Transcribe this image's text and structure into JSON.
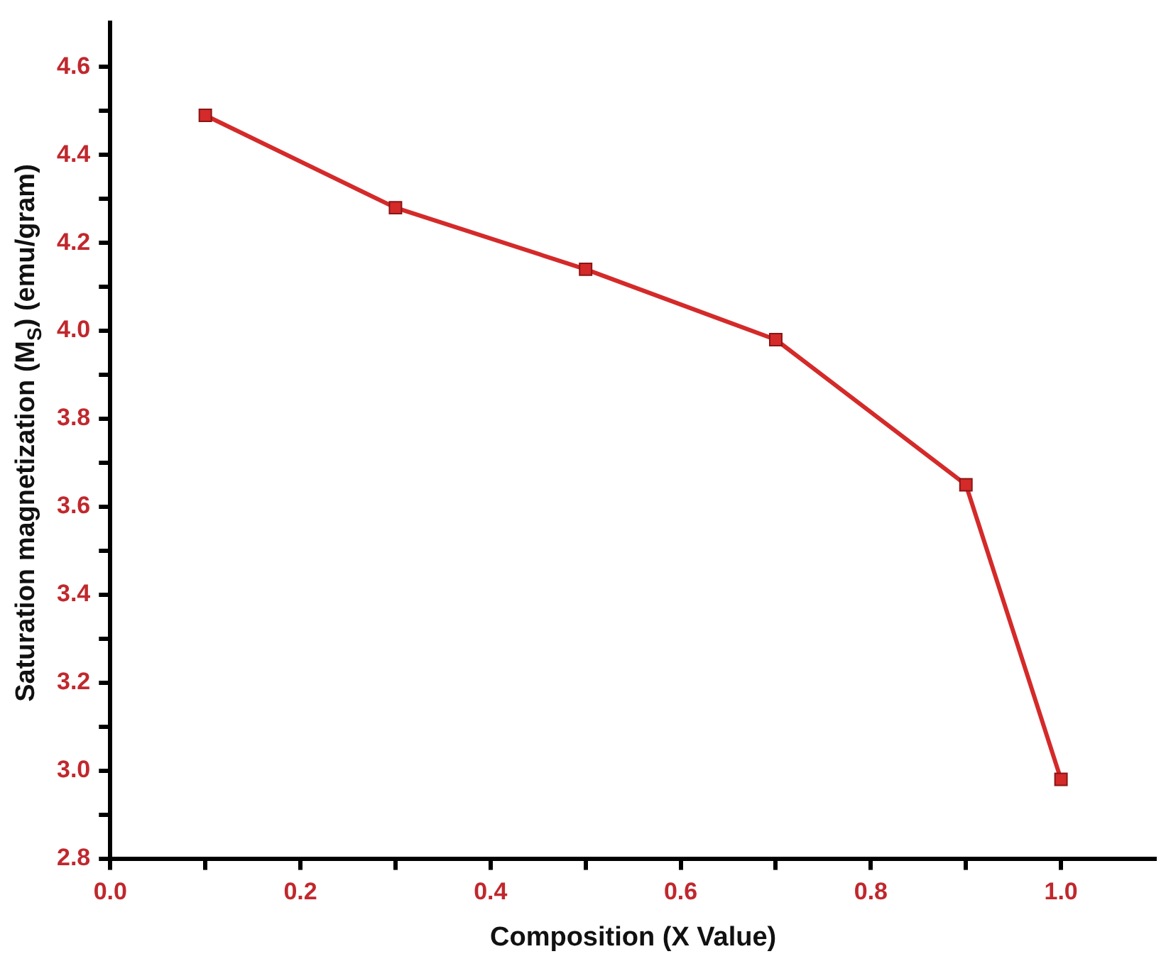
{
  "chart_data": {
    "type": "line",
    "xlabel": "Composition (X Value)",
    "ylabel": "Saturation magnetization (M$_{S}$) (emu/gram)",
    "x": [
      0.1,
      0.3,
      0.5,
      0.7,
      0.9,
      1.0
    ],
    "series": [
      {
        "color": "#d42a2a",
        "values": [
          4.49,
          4.28,
          4.14,
          3.98,
          3.65,
          2.98
        ]
      }
    ],
    "xlim": [
      0,
      1.1
    ],
    "ylim": [
      2.8,
      4.7
    ],
    "xticks": [
      {
        "value": 0,
        "label": "0.0"
      },
      {
        "value": 0.1,
        "label": null
      },
      0.2,
      {
        "value": 0.3,
        "label": null
      },
      0.4,
      {
        "value": 0.5,
        "label": null
      },
      0.6,
      {
        "value": 0.7,
        "label": null
      },
      0.8,
      {
        "value": 0.9,
        "label": null
      },
      {
        "value": 1,
        "label": "1.0"
      }
    ],
    "yticks": [
      2.8,
      {
        "value": 2.9,
        "label": null
      },
      {
        "value": 3,
        "label": "3.0"
      },
      {
        "value": 3.1,
        "label": null
      },
      3.2,
      {
        "value": 3.3,
        "label": null
      },
      3.4,
      {
        "value": 3.5,
        "label": null
      },
      3.6,
      {
        "value": 3.7,
        "label": null
      },
      3.8,
      {
        "value": 3.9,
        "label": null
      },
      {
        "value": 4,
        "label": "4.0"
      },
      {
        "value": 4.1,
        "label": null
      },
      4.2,
      {
        "value": 4.3,
        "label": null
      },
      4.4,
      {
        "value": 4.5,
        "label": null
      },
      4.6
    ],
    "marker": "square",
    "line_style": "solid",
    "grid": false,
    "legend": false
  }
}
